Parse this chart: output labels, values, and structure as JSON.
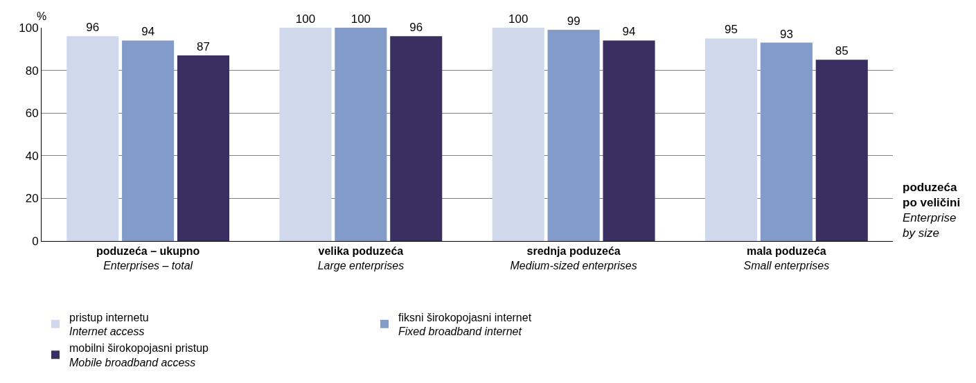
{
  "chart_data": {
    "type": "bar",
    "ylabel": "%",
    "xlabel": "poduzeća\npo veličini\nEnterprise\nby size",
    "categories": [
      "poduzeća – ukupno\nEnterprises – total",
      "velika poduzeća\nLarge enterprises",
      "srednja poduzeća\nMedium-sized enterprises",
      "mala poduzeća\nSmall enterprises"
    ],
    "series": [
      {
        "name": "pristup internetu\nInternet access",
        "color": "#d0d9ec",
        "values": [
          96,
          100,
          100,
          95
        ]
      },
      {
        "name": "fiksni širokopojasni internet\nFixed broadband internet",
        "color": "#829bc8",
        "values": [
          94,
          100,
          99,
          93
        ]
      },
      {
        "name": "mobilni širokopojasni pristup\nMobile broadband access",
        "color": "#3a2f60",
        "values": [
          87,
          96,
          94,
          85
        ]
      }
    ],
    "ylim": [
      0,
      100
    ],
    "yticks": [
      0,
      20,
      40,
      60,
      80,
      100
    ],
    "grid": "y",
    "legend": "bottom",
    "data_labels": true
  }
}
